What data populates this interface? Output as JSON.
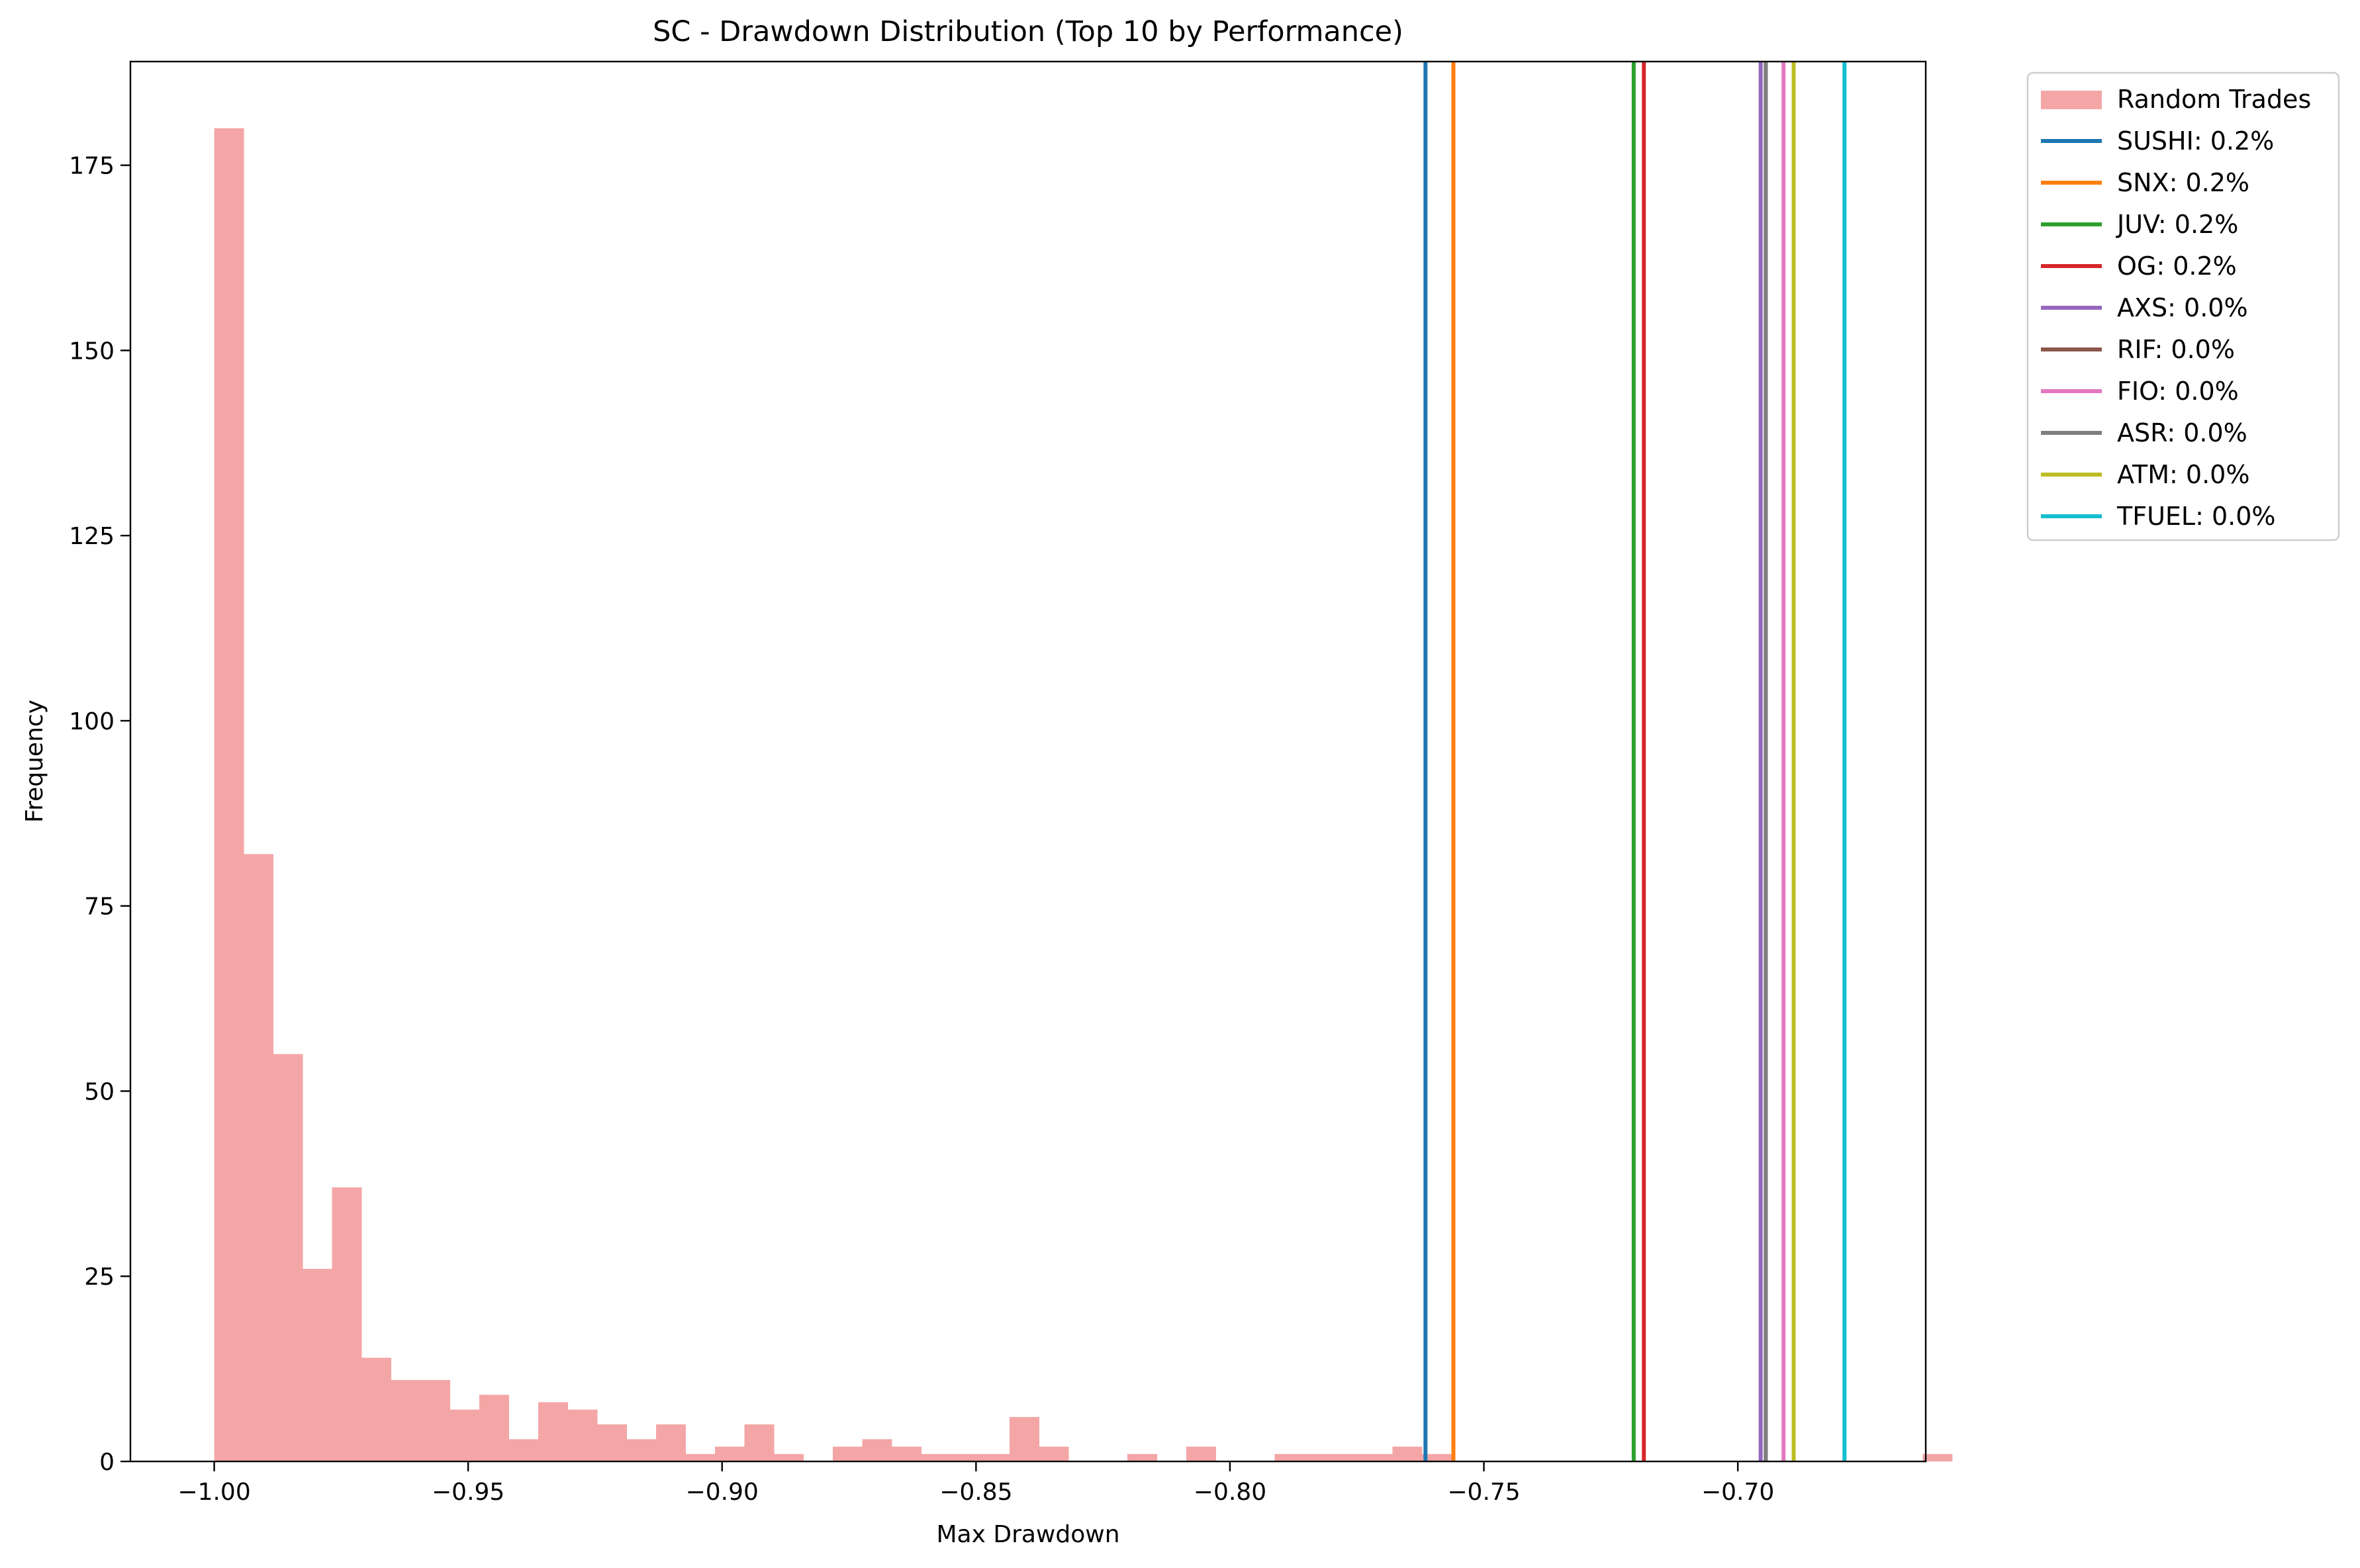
{
  "chart_data": {
    "type": "bar",
    "title": "SC - Drawdown Distribution (Top 10 by Performance)",
    "xlabel": "Max Drawdown",
    "ylabel": "Frequency",
    "xlim": [
      -1.0165,
      -0.663
    ],
    "ylim": [
      0,
      189
    ],
    "xticks": [
      -1.0,
      -0.95,
      -0.9,
      -0.85,
      -0.8,
      -0.75,
      -0.7
    ],
    "xtick_labels": [
      "−1.00",
      "−0.95",
      "−0.90",
      "−0.85",
      "−0.80",
      "−0.75",
      "−0.70"
    ],
    "yticks": [
      0,
      25,
      50,
      75,
      100,
      125,
      150,
      175
    ],
    "yticks_labels": [
      "0",
      "25",
      "50",
      "75",
      "100",
      "125",
      "150",
      "175"
    ],
    "histogram": {
      "name": "Random Trades",
      "color": "#f4a6a6",
      "bin_start": -1.0,
      "bin_width": 0.0058,
      "counts": [
        180,
        82,
        55,
        26,
        37,
        14,
        11,
        11,
        7,
        9,
        3,
        8,
        7,
        5,
        3,
        5,
        1,
        2,
        5,
        1,
        0,
        2,
        3,
        2,
        1,
        1,
        1,
        6,
        2,
        0,
        0,
        1,
        0,
        2,
        0,
        0,
        1,
        1,
        1,
        1,
        2,
        1,
        0,
        0,
        0,
        0,
        0,
        0,
        0,
        0,
        0,
        0,
        0,
        0,
        0,
        0,
        0,
        0,
        1
      ]
    },
    "vlines": [
      {
        "name": "SUSHI: 0.2%",
        "x": -0.7615,
        "color": "#1f77b4"
      },
      {
        "name": "SNX: 0.2%",
        "x": -0.756,
        "color": "#ff7f0e"
      },
      {
        "name": "JUV: 0.2%",
        "x": -0.7205,
        "color": "#2ca02c"
      },
      {
        "name": "OG: 0.2%",
        "x": -0.7185,
        "color": "#d62728"
      },
      {
        "name": "AXS: 0.0%",
        "x": -0.6955,
        "color": "#9467bd"
      },
      {
        "name": "RIF: 0.0%",
        "x": -0.6945,
        "color": "#8c564b"
      },
      {
        "name": "FIO: 0.0%",
        "x": -0.691,
        "color": "#e377c2"
      },
      {
        "name": "ASR: 0.0%",
        "x": -0.6945,
        "color": "#7f7f7f"
      },
      {
        "name": "ATM: 0.0%",
        "x": -0.689,
        "color": "#bcbd22"
      },
      {
        "name": "TFUEL: 0.0%",
        "x": -0.679,
        "color": "#17becf"
      }
    ],
    "legend_position": "outside-top-right"
  }
}
